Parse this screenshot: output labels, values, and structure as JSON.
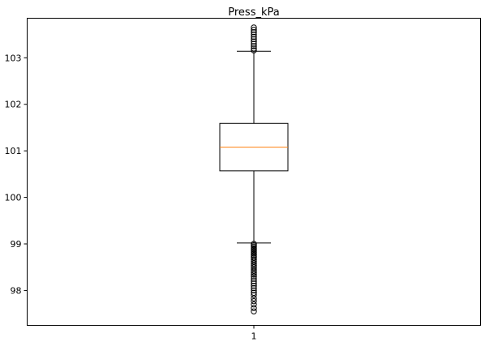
{
  "chart_data": {
    "type": "boxplot",
    "title": "Press_kPa",
    "xlabel": "",
    "ylabel": "",
    "categories": [
      "1"
    ],
    "ylim": [
      97.25,
      103.85
    ],
    "yticks": [
      98,
      99,
      100,
      101,
      102,
      103
    ],
    "ytick_labels": [
      "98",
      "99",
      "100",
      "101",
      "102",
      "103"
    ],
    "grid": false,
    "box": {
      "whisker_low": 99.02,
      "q1": 100.57,
      "median": 101.08,
      "q3": 101.59,
      "whisker_high": 103.14
    },
    "fliers_high": [
      103.16,
      103.2,
      103.25,
      103.3,
      103.35,
      103.4,
      103.45,
      103.5,
      103.55,
      103.6,
      103.65
    ],
    "fliers_low": [
      99.0,
      98.97,
      98.94,
      98.91,
      98.88,
      98.85,
      98.82,
      98.79,
      98.76,
      98.73,
      98.7,
      98.66,
      98.62,
      98.58,
      98.54,
      98.5,
      98.46,
      98.42,
      98.38,
      98.34,
      98.3,
      98.25,
      98.2,
      98.15,
      98.1,
      98.05,
      98.0,
      97.95,
      97.9,
      97.83,
      97.77,
      97.7,
      97.62,
      97.55
    ],
    "colors": {
      "box": "#000000",
      "median": "#ff7f0e",
      "flier": "#000000",
      "background": "#ffffff"
    }
  }
}
